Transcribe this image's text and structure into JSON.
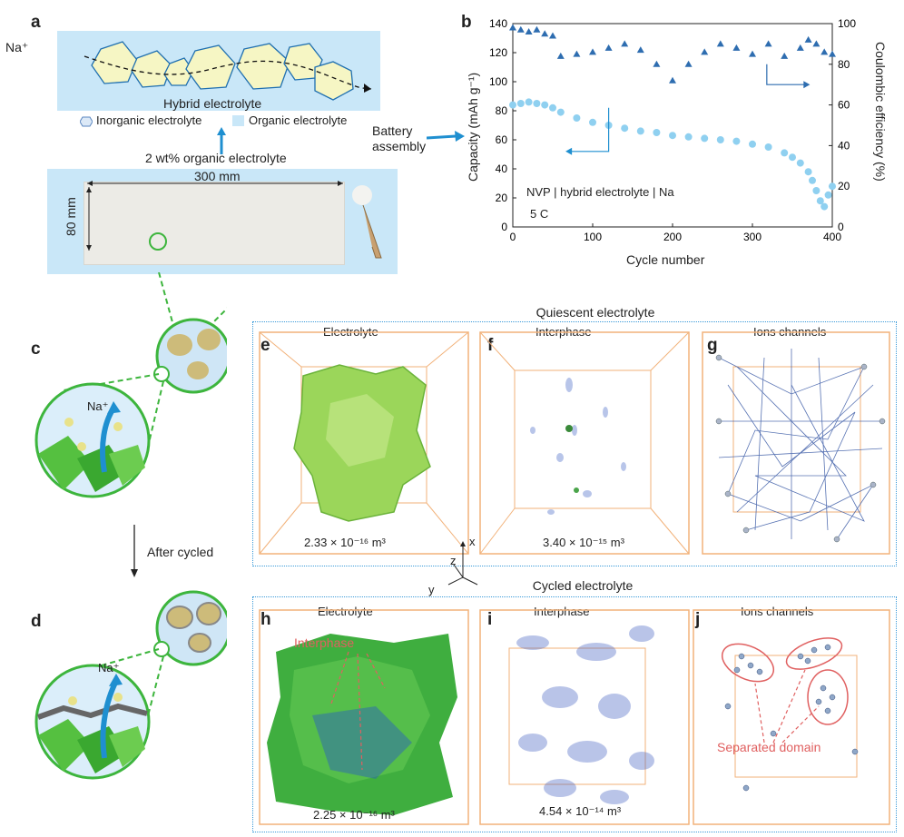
{
  "panel_labels": {
    "a": "a",
    "b": "b",
    "c": "c",
    "d": "d",
    "e": "e",
    "f": "f",
    "g": "g",
    "h": "h",
    "i": "i",
    "j": "j"
  },
  "panel_a": {
    "ion_label": "Na⁺",
    "hybrid_label": "Hybrid electrolyte",
    "legend_inorganic": "Inorganic electrolyte",
    "legend_organic": "Organic electrolyte",
    "arrow_label": "2 wt% organic electrolyte",
    "width_label": "300 mm",
    "height_label": "80 mm",
    "battery_label_1": "Battery",
    "battery_label_2": "assembly"
  },
  "panel_c": {
    "ion_label": "Na⁺"
  },
  "panel_d": {
    "ion_label": "Na⁺"
  },
  "after_cycled": "After cycled",
  "quiescent_title": "Quiescent electrolyte",
  "cycled_title": "Cycled electrolyte",
  "panel_e": {
    "title": "Electrolyte",
    "volume": "2.33 × 10⁻¹⁶ m³"
  },
  "panel_f": {
    "title": "Interphase",
    "volume": "3.40 × 10⁻¹⁵ m³"
  },
  "panel_g": {
    "title": "Ions channels"
  },
  "panel_h": {
    "title": "Electrolyte",
    "volume": "2.25 × 10⁻¹⁶ m³",
    "annotation": "Interphase"
  },
  "panel_i": {
    "title": "Interphase",
    "volume": "4.54 × 10⁻¹⁴ m³"
  },
  "panel_j": {
    "title": "Ions channels",
    "annotation": "Separated domain"
  },
  "axes_triad": {
    "x": "x",
    "y": "y",
    "z": "z"
  },
  "colors": {
    "accent_blue": "#1f8fd0",
    "light_blue_bg": "#c9e7f8",
    "capacity": "#8fd0f0",
    "ce": "#2e6db0",
    "green": "#3db53d",
    "orange_frame": "#f2b27a",
    "red_annot": "#e06060"
  },
  "chart_data": {
    "type": "scatter",
    "title": "",
    "annotation_1": "NVP | hybrid electrolyte | Na",
    "annotation_2": "5 C",
    "xlabel": "Cycle number",
    "ylabel_left": "Capacity (mAh g⁻¹)",
    "ylabel_right": "Coulombic efficiency (%)",
    "xlim": [
      0,
      400
    ],
    "ylim_left": [
      0,
      140
    ],
    "ylim_right": [
      0,
      100
    ],
    "xticks": [
      "0",
      "100",
      "200",
      "300",
      "400"
    ],
    "yticks_left": [
      "0",
      "20",
      "40",
      "60",
      "80",
      "100",
      "120",
      "140"
    ],
    "yticks_right": [
      "0",
      "20",
      "40",
      "60",
      "80",
      "100"
    ],
    "series": [
      {
        "axis": "left",
        "x": [
          0,
          10,
          20,
          30,
          40,
          50,
          60,
          80,
          100,
          120,
          140,
          160,
          180,
          200,
          220,
          240,
          260,
          280,
          300,
          320,
          340,
          350,
          360,
          370,
          375,
          380,
          385,
          390,
          395,
          400
        ],
        "y": [
          84,
          85,
          86,
          85,
          84,
          82,
          79,
          75,
          72,
          70,
          68,
          66,
          65,
          63,
          62,
          61,
          60,
          59,
          57,
          55,
          51,
          48,
          44,
          38,
          32,
          25,
          18,
          14,
          22,
          28
        ]
      },
      {
        "axis": "right",
        "x": [
          0,
          10,
          20,
          30,
          40,
          50,
          60,
          80,
          100,
          120,
          140,
          160,
          180,
          200,
          220,
          240,
          260,
          280,
          300,
          320,
          340,
          360,
          370,
          380,
          390,
          400
        ],
        "y": [
          98,
          97,
          96,
          97,
          95,
          94,
          84,
          85,
          86,
          88,
          90,
          87,
          80,
          72,
          80,
          86,
          90,
          88,
          85,
          90,
          84,
          88,
          92,
          90,
          86,
          85
        ]
      }
    ]
  }
}
